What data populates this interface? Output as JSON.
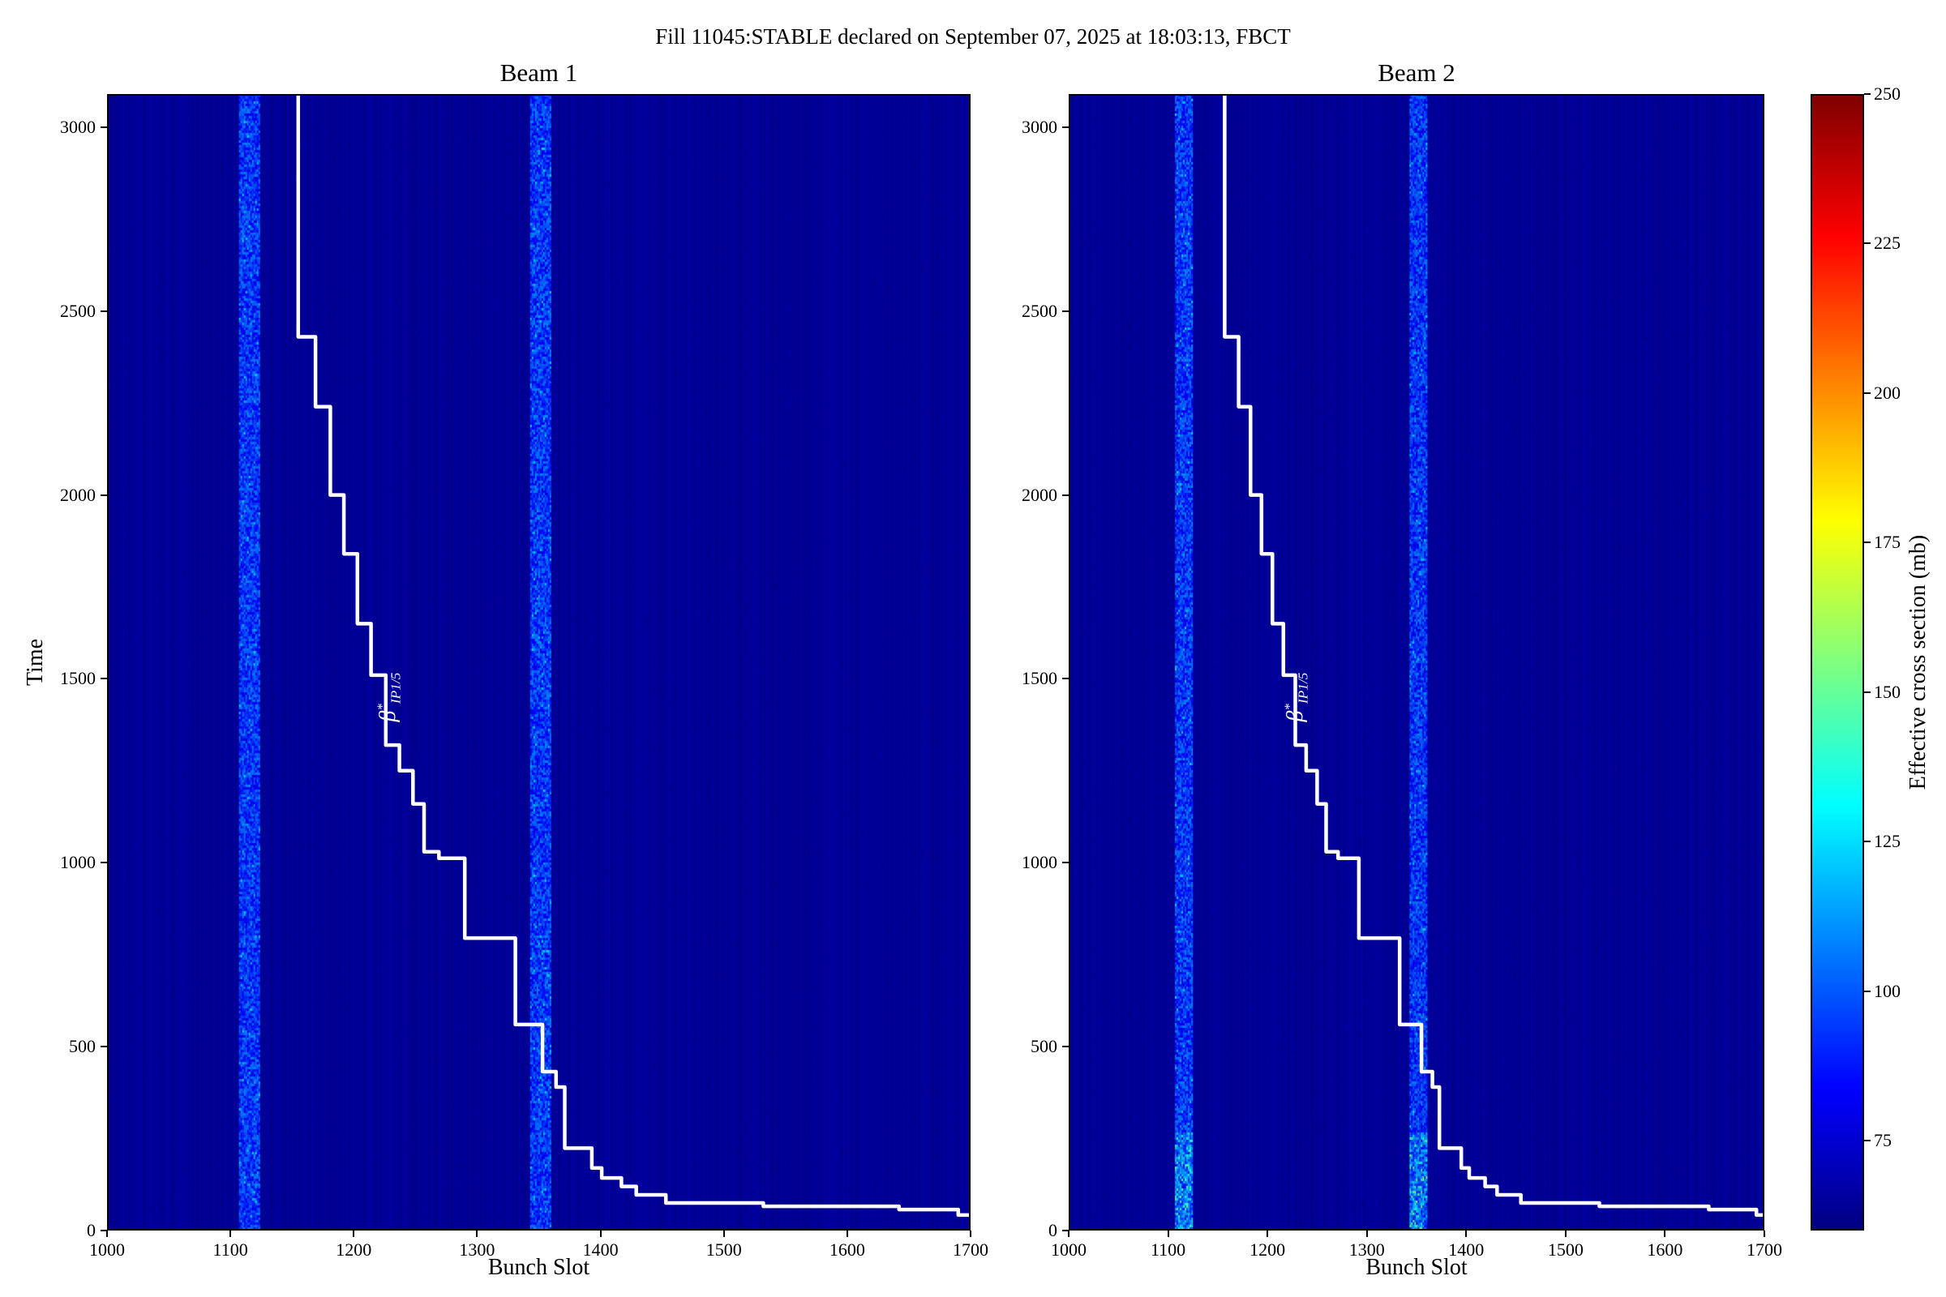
{
  "figure": {
    "title": "Fill 11045:STABLE declared on September 07, 2025 at 18:03:13, FBCT"
  },
  "chart_data": {
    "type": "heatmap",
    "colormap": "jet",
    "panels": [
      {
        "title": "Beam 1",
        "xlabel": "Bunch Slot",
        "ylabel": "Time",
        "xlim": [
          1000,
          1700
        ],
        "ylim": [
          0,
          3090
        ],
        "xticks": [
          1000,
          1100,
          1200,
          1300,
          1400,
          1500,
          1600,
          1700
        ],
        "yticks": [
          0,
          500,
          1000,
          1500,
          2000,
          2500,
          3000
        ],
        "background_value": 64,
        "stripes": [
          {
            "slot_start": 1107,
            "slot_end": 1124,
            "value_min": 78,
            "value_max": 110
          },
          {
            "slot_start": 1343,
            "slot_end": 1360,
            "value_min": 78,
            "value_max": 110
          }
        ],
        "bright_regions": [],
        "annotation": {
          "symbol": "β",
          "sup": "*",
          "sub": "IP1/5",
          "slot": 1229,
          "time": 1450,
          "rotation_deg": 90,
          "color": "#ffffff"
        },
        "step_line": {
          "color": "#ffffff",
          "width": 4.5,
          "points": [
            [
              1155,
              3090
            ],
            [
              1155,
              2430
            ],
            [
              1169,
              2430
            ],
            [
              1169,
              2240
            ],
            [
              1181,
              2240
            ],
            [
              1181,
              2000
            ],
            [
              1192,
              2000
            ],
            [
              1192,
              1840
            ],
            [
              1203,
              1840
            ],
            [
              1203,
              1650
            ],
            [
              1214,
              1650
            ],
            [
              1214,
              1510
            ],
            [
              1226,
              1510
            ],
            [
              1226,
              1320
            ],
            [
              1237,
              1320
            ],
            [
              1237,
              1250
            ],
            [
              1248,
              1250
            ],
            [
              1248,
              1160
            ],
            [
              1257,
              1160
            ],
            [
              1257,
              1030
            ],
            [
              1269,
              1030
            ],
            [
              1269,
              1012
            ],
            [
              1290,
              1012
            ],
            [
              1290,
              795
            ],
            [
              1331,
              795
            ],
            [
              1331,
              560
            ],
            [
              1353,
              560
            ],
            [
              1353,
              432
            ],
            [
              1364,
              432
            ],
            [
              1364,
              390
            ],
            [
              1371,
              390
            ],
            [
              1371,
              224
            ],
            [
              1393,
              224
            ],
            [
              1393,
              170
            ],
            [
              1401,
              170
            ],
            [
              1401,
              143
            ],
            [
              1417,
              143
            ],
            [
              1417,
              120
            ],
            [
              1429,
              120
            ],
            [
              1429,
              97
            ],
            [
              1453,
              97
            ],
            [
              1453,
              75
            ],
            [
              1532,
              75
            ],
            [
              1532,
              66
            ],
            [
              1642,
              66
            ],
            [
              1642,
              57
            ],
            [
              1690,
              57
            ],
            [
              1690,
              42
            ],
            [
              1700,
              42
            ]
          ]
        }
      },
      {
        "title": "Beam 2",
        "xlabel": "Bunch Slot",
        "ylabel": "",
        "xlim": [
          1000,
          1700
        ],
        "ylim": [
          0,
          3090
        ],
        "xticks": [
          1000,
          1100,
          1200,
          1300,
          1400,
          1500,
          1600,
          1700
        ],
        "yticks": [
          0,
          500,
          1000,
          1500,
          2000,
          2500,
          3000
        ],
        "background_value": 64,
        "stripes": [
          {
            "slot_start": 1107,
            "slot_end": 1124,
            "value_min": 78,
            "value_max": 110
          },
          {
            "slot_start": 1343,
            "slot_end": 1360,
            "value_min": 78,
            "value_max": 110
          }
        ],
        "bright_regions": [
          {
            "slot_start": 1107,
            "slot_end": 1124,
            "time_start": 0,
            "time_end": 270,
            "value_max": 150
          },
          {
            "slot_start": 1343,
            "slot_end": 1360,
            "time_start": 0,
            "time_end": 270,
            "value_max": 160
          }
        ],
        "annotation": {
          "symbol": "β",
          "sup": "*",
          "sub": "IP1/5",
          "slot": 1229,
          "time": 1450,
          "rotation_deg": 90,
          "color": "#ffffff"
        },
        "step_line": {
          "color": "#ffffff",
          "width": 4.5,
          "points": [
            [
              1157,
              3090
            ],
            [
              1157,
              2430
            ],
            [
              1171,
              2430
            ],
            [
              1171,
              2240
            ],
            [
              1183,
              2240
            ],
            [
              1183,
              2000
            ],
            [
              1194,
              2000
            ],
            [
              1194,
              1840
            ],
            [
              1205,
              1840
            ],
            [
              1205,
              1650
            ],
            [
              1216,
              1650
            ],
            [
              1216,
              1510
            ],
            [
              1228,
              1510
            ],
            [
              1228,
              1320
            ],
            [
              1239,
              1320
            ],
            [
              1239,
              1250
            ],
            [
              1250,
              1250
            ],
            [
              1250,
              1160
            ],
            [
              1259,
              1160
            ],
            [
              1259,
              1030
            ],
            [
              1271,
              1030
            ],
            [
              1271,
              1012
            ],
            [
              1292,
              1012
            ],
            [
              1292,
              795
            ],
            [
              1333,
              795
            ],
            [
              1333,
              560
            ],
            [
              1355,
              560
            ],
            [
              1355,
              432
            ],
            [
              1366,
              432
            ],
            [
              1366,
              390
            ],
            [
              1373,
              390
            ],
            [
              1373,
              224
            ],
            [
              1395,
              224
            ],
            [
              1395,
              170
            ],
            [
              1403,
              170
            ],
            [
              1403,
              143
            ],
            [
              1419,
              143
            ],
            [
              1419,
              120
            ],
            [
              1431,
              120
            ],
            [
              1431,
              97
            ],
            [
              1455,
              97
            ],
            [
              1455,
              75
            ],
            [
              1534,
              75
            ],
            [
              1534,
              66
            ],
            [
              1644,
              66
            ],
            [
              1644,
              57
            ],
            [
              1692,
              57
            ],
            [
              1692,
              42
            ],
            [
              1700,
              42
            ]
          ]
        }
      }
    ],
    "colorbar": {
      "label": "Effective cross section (mb)",
      "vmin": 60,
      "vmax": 250,
      "ticks": [
        75,
        100,
        125,
        150,
        175,
        200,
        225,
        250
      ]
    }
  }
}
